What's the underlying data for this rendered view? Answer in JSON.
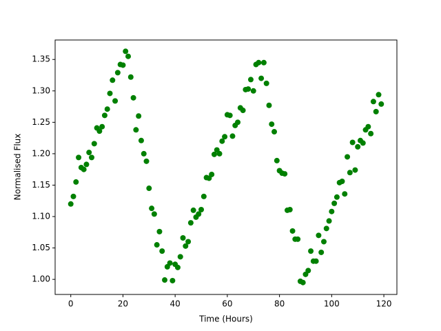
{
  "chart_data": {
    "type": "scatter",
    "xlabel": "Time (Hours)",
    "ylabel": "Normalised Flux",
    "color": "#008000",
    "x": [
      0,
      1,
      2,
      3,
      4,
      5,
      6,
      7,
      8,
      9,
      10,
      11,
      12,
      13,
      14,
      15,
      16,
      17,
      18,
      19,
      20,
      21,
      22,
      23,
      24,
      25,
      26,
      27,
      28,
      29,
      30,
      31,
      32,
      33,
      34,
      35,
      36,
      37,
      38,
      39,
      40,
      41,
      42,
      43,
      44,
      45,
      46,
      47,
      48,
      49,
      50,
      51,
      52,
      53,
      54,
      55,
      56,
      57,
      58,
      59,
      60,
      61,
      62,
      63,
      64,
      65,
      66,
      67,
      68,
      69,
      70,
      71,
      72,
      73,
      74,
      75,
      76,
      77,
      78,
      79,
      80,
      81,
      82,
      83,
      84,
      85,
      86,
      87,
      88,
      89,
      90,
      91,
      92,
      93,
      94,
      95,
      96,
      97,
      98,
      99,
      100,
      101,
      102,
      103,
      104,
      105,
      106,
      107,
      108,
      109,
      110,
      111,
      112,
      113,
      114,
      115,
      116,
      117,
      118,
      119
    ],
    "values": [
      1.12,
      1.132,
      1.155,
      1.194,
      1.178,
      1.175,
      1.183,
      1.202,
      1.194,
      1.216,
      1.241,
      1.236,
      1.243,
      1.261,
      1.271,
      1.296,
      1.317,
      1.284,
      1.329,
      1.342,
      1.341,
      1.363,
      1.355,
      1.322,
      1.289,
      1.238,
      1.26,
      1.221,
      1.2,
      1.188,
      1.145,
      1.113,
      1.104,
      1.055,
      1.076,
      1.045,
      0.999,
      1.02,
      1.026,
      0.998,
      1.024,
      1.019,
      1.036,
      1.066,
      1.053,
      1.06,
      1.09,
      1.11,
      1.099,
      1.104,
      1.111,
      1.132,
      1.162,
      1.161,
      1.167,
      1.199,
      1.206,
      1.2,
      1.22,
      1.227,
      1.262,
      1.261,
      1.228,
      1.245,
      1.25,
      1.273,
      1.269,
      1.302,
      1.303,
      1.318,
      1.3,
      1.342,
      1.345,
      1.32,
      1.345,
      1.312,
      1.277,
      1.247,
      1.235,
      1.189,
      1.173,
      1.169,
      1.168,
      1.11,
      1.111,
      1.077,
      1.064,
      1.064,
      0.997,
      0.995,
      1.008,
      1.014,
      1.045,
      1.029,
      1.029,
      1.07,
      1.043,
      1.06,
      1.081,
      1.093,
      1.108,
      1.121,
      1.131,
      1.154,
      1.156,
      1.136,
      1.195,
      1.17,
      1.218,
      1.174,
      1.211,
      1.221,
      1.217,
      1.238,
      1.243,
      1.232,
      1.283,
      1.267,
      1.294,
      1.279
    ],
    "xlim": [
      -6,
      125
    ],
    "ylim": [
      0.976,
      1.381
    ],
    "xticks": [
      0,
      20,
      40,
      60,
      80,
      100,
      120
    ],
    "yticks": [
      {
        "value": 1.0,
        "label": "1.00"
      },
      1.05,
      {
        "value": 1.1,
        "label": "1.10"
      },
      1.15,
      {
        "value": 1.2,
        "label": "1.20"
      },
      1.25,
      {
        "value": 1.3,
        "label": "1.30"
      },
      1.35
    ]
  }
}
